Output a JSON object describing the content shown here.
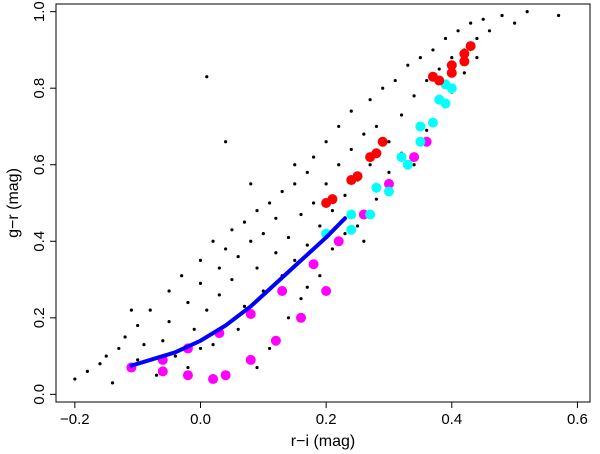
{
  "chart_data": {
    "type": "scatter",
    "title": "",
    "xlabel": "r−i (mag)",
    "ylabel": "g−r (mag)",
    "xlim": [
      -0.23,
      0.62
    ],
    "ylim": [
      -0.02,
      1.02
    ],
    "x_ticks": [
      -0.2,
      0.0,
      0.2,
      0.4,
      0.6
    ],
    "x_tick_labels": [
      "−0.2",
      "0.0",
      "0.2",
      "0.4",
      "0.6"
    ],
    "y_ticks": [
      0.0,
      0.2,
      0.4,
      0.6,
      0.8,
      1.0
    ],
    "y_tick_labels": [
      "0.0",
      "0.2",
      "0.4",
      "0.6",
      "0.8",
      "1.0"
    ],
    "grid": false,
    "legend": "none",
    "series": [
      {
        "color": "#000000",
        "marker": "dot",
        "values": [
          [
            -0.2,
            0.04
          ],
          [
            -0.18,
            0.06
          ],
          [
            -0.16,
            0.08
          ],
          [
            -0.15,
            0.1
          ],
          [
            -0.14,
            0.03
          ],
          [
            -0.13,
            0.12
          ],
          [
            -0.12,
            0.15
          ],
          [
            -0.1,
            0.18
          ],
          [
            -0.1,
            0.09
          ],
          [
            -0.08,
            0.22
          ],
          [
            -0.07,
            0.05
          ],
          [
            -0.06,
            0.14
          ],
          [
            -0.05,
            0.27
          ],
          [
            -0.05,
            0.19
          ],
          [
            -0.04,
            0.1
          ],
          [
            -0.03,
            0.31
          ],
          [
            -0.02,
            0.24
          ],
          [
            -0.01,
            0.17
          ],
          [
            0.0,
            0.35
          ],
          [
            0.0,
            0.29
          ],
          [
            0.01,
            0.22
          ],
          [
            0.01,
            0.83
          ],
          [
            0.02,
            0.4
          ],
          [
            0.02,
            0.13
          ],
          [
            0.03,
            0.33
          ],
          [
            0.03,
            0.26
          ],
          [
            0.04,
            0.38
          ],
          [
            0.05,
            0.43
          ],
          [
            0.05,
            0.3
          ],
          [
            0.06,
            0.36
          ],
          [
            0.07,
            0.45
          ],
          [
            0.07,
            0.23
          ],
          [
            0.08,
            0.4
          ],
          [
            0.09,
            0.48
          ],
          [
            0.09,
            0.33
          ],
          [
            0.1,
            0.42
          ],
          [
            0.1,
            0.27
          ],
          [
            0.11,
            0.5
          ],
          [
            0.12,
            0.37
          ],
          [
            0.12,
            0.46
          ],
          [
            0.13,
            0.31
          ],
          [
            0.13,
            0.53
          ],
          [
            0.14,
            0.41
          ],
          [
            0.15,
            0.55
          ],
          [
            0.15,
            0.35
          ],
          [
            0.16,
            0.47
          ],
          [
            0.17,
            0.58
          ],
          [
            0.17,
            0.39
          ],
          [
            0.18,
            0.5
          ],
          [
            0.18,
            0.62
          ],
          [
            0.19,
            0.44
          ],
          [
            0.2,
            0.55
          ],
          [
            0.2,
            0.66
          ],
          [
            0.21,
            0.48
          ],
          [
            0.22,
            0.6
          ],
          [
            0.22,
            0.7
          ],
          [
            0.23,
            0.52
          ],
          [
            0.24,
            0.64
          ],
          [
            0.24,
            0.74
          ],
          [
            0.25,
            0.56
          ],
          [
            0.26,
            0.68
          ],
          [
            0.27,
            0.77
          ],
          [
            0.27,
            0.6
          ],
          [
            0.28,
            0.7
          ],
          [
            0.29,
            0.8
          ],
          [
            0.3,
            0.66
          ],
          [
            0.31,
            0.82
          ],
          [
            0.32,
            0.73
          ],
          [
            0.33,
            0.86
          ],
          [
            0.34,
            0.78
          ],
          [
            0.35,
            0.88
          ],
          [
            0.36,
            0.82
          ],
          [
            0.37,
            0.9
          ],
          [
            0.38,
            0.85
          ],
          [
            0.39,
            0.93
          ],
          [
            0.4,
            0.88
          ],
          [
            0.41,
            0.95
          ],
          [
            0.42,
            0.9
          ],
          [
            0.43,
            0.97
          ],
          [
            0.44,
            0.93
          ],
          [
            0.45,
            0.98
          ],
          [
            0.46,
            0.95
          ],
          [
            0.48,
            0.99
          ],
          [
            0.5,
            0.97
          ],
          [
            0.52,
            1.0
          ],
          [
            0.57,
            0.99
          ],
          [
            0.04,
            0.66
          ],
          [
            0.09,
            0.07
          ],
          [
            0.16,
            0.25
          ],
          [
            0.25,
            0.44
          ],
          [
            -0.11,
            0.22
          ],
          [
            0.06,
            0.17
          ],
          [
            0.14,
            0.2
          ],
          [
            0.21,
            0.38
          ],
          [
            0.28,
            0.51
          ],
          [
            0.34,
            0.6
          ],
          [
            0.36,
            0.69
          ],
          [
            0.3,
            0.58
          ],
          [
            -0.09,
            0.13
          ],
          [
            -0.02,
            0.07
          ],
          [
            0.19,
            0.31
          ],
          [
            0.26,
            0.4
          ],
          [
            0.11,
            0.12
          ],
          [
            0.08,
            0.55
          ],
          [
            0.15,
            0.6
          ],
          [
            0.23,
            0.42
          ],
          [
            0.32,
            0.63
          ],
          [
            0.4,
            0.79
          ],
          [
            0.42,
            0.84
          ],
          [
            0.44,
            0.88
          ],
          [
            0.17,
            0.28
          ],
          [
            0.0,
            0.12
          ]
        ]
      },
      {
        "color": "#ff00ff",
        "marker": "band",
        "values": [
          [
            -0.11,
            0.07
          ],
          [
            -0.06,
            0.09
          ],
          [
            -0.02,
            0.12
          ],
          [
            0.03,
            0.16
          ],
          [
            0.08,
            0.21
          ],
          [
            0.13,
            0.27
          ],
          [
            0.18,
            0.34
          ],
          [
            0.22,
            0.4
          ],
          [
            0.26,
            0.47
          ],
          [
            0.3,
            0.55
          ],
          [
            0.34,
            0.62
          ],
          [
            0.36,
            0.66
          ],
          [
            0.2,
            0.27
          ],
          [
            0.16,
            0.2
          ],
          [
            0.12,
            0.14
          ],
          [
            0.08,
            0.09
          ],
          [
            0.04,
            0.05
          ],
          [
            0.02,
            0.04
          ],
          [
            -0.02,
            0.05
          ],
          [
            -0.06,
            0.06
          ]
        ]
      },
      {
        "color": "#00ffff",
        "marker": "band",
        "values": [
          [
            0.2,
            0.42
          ],
          [
            0.24,
            0.47
          ],
          [
            0.28,
            0.54
          ],
          [
            0.32,
            0.62
          ],
          [
            0.35,
            0.7
          ],
          [
            0.38,
            0.77
          ],
          [
            0.39,
            0.81
          ],
          [
            0.4,
            0.8
          ],
          [
            0.39,
            0.76
          ],
          [
            0.37,
            0.71
          ],
          [
            0.35,
            0.66
          ],
          [
            0.33,
            0.6
          ],
          [
            0.3,
            0.53
          ],
          [
            0.27,
            0.47
          ],
          [
            0.24,
            0.43
          ]
        ]
      },
      {
        "color": "#ff0000",
        "marker": "band",
        "values": [
          [
            0.2,
            0.5
          ],
          [
            0.24,
            0.56
          ],
          [
            0.27,
            0.62
          ],
          [
            0.29,
            0.66
          ],
          [
            0.28,
            0.63
          ],
          [
            0.25,
            0.57
          ],
          [
            0.21,
            0.51
          ],
          [
            0.37,
            0.83
          ],
          [
            0.4,
            0.86
          ],
          [
            0.42,
            0.89
          ],
          [
            0.43,
            0.91
          ],
          [
            0.42,
            0.87
          ],
          [
            0.4,
            0.84
          ],
          [
            0.38,
            0.82
          ]
        ]
      },
      {
        "color": "#0000ff",
        "marker": "line",
        "values": [
          [
            -0.11,
            0.075
          ],
          [
            -0.08,
            0.09
          ],
          [
            -0.04,
            0.11
          ],
          [
            0.0,
            0.14
          ],
          [
            0.04,
            0.18
          ],
          [
            0.08,
            0.23
          ],
          [
            0.12,
            0.29
          ],
          [
            0.16,
            0.35
          ],
          [
            0.2,
            0.41
          ],
          [
            0.23,
            0.46
          ]
        ]
      }
    ]
  }
}
